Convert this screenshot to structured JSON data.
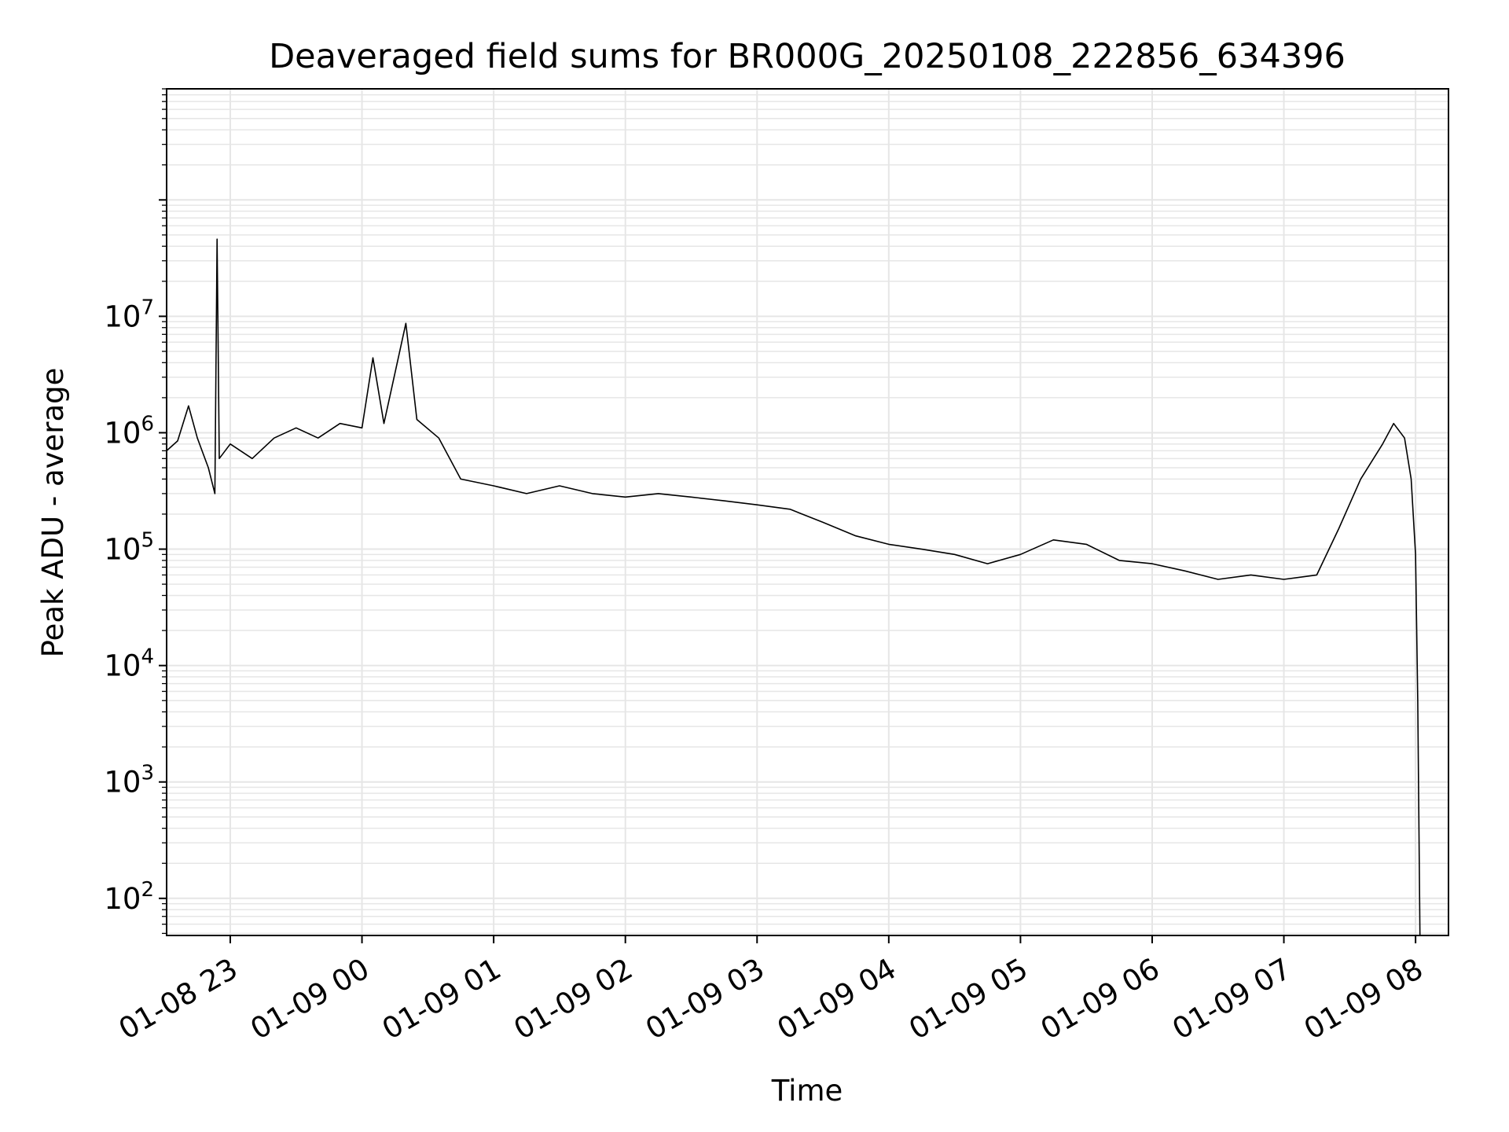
{
  "chart_data": {
    "type": "line",
    "title": "Deaveraged field sums for BR000G_20250108_222856_634396",
    "xlabel": "Time",
    "ylabel": "Peak ADU - average",
    "yscale": "log",
    "ylim": [
      48,
      900000000
    ],
    "xlim": [
      "01-08 22:31",
      "01-09 08:15"
    ],
    "grid": true,
    "x_ticks": [
      "01-08 23",
      "01-09 00",
      "01-09 01",
      "01-09 02",
      "01-09 03",
      "01-09 04",
      "01-09 05",
      "01-09 06",
      "01-09 07",
      "01-09 08"
    ],
    "y_ticks": [
      {
        "base": "10",
        "exp": "2",
        "value": 100
      },
      {
        "base": "10",
        "exp": "3",
        "value": 1000
      },
      {
        "base": "10",
        "exp": "4",
        "value": 10000
      },
      {
        "base": "10",
        "exp": "5",
        "value": 100000
      },
      {
        "base": "10",
        "exp": "6",
        "value": 1000000
      },
      {
        "base": "10",
        "exp": "7",
        "value": 10000000
      }
    ],
    "line_color": "#000000",
    "grid_color": "#e6e6e6",
    "series": [
      {
        "points": [
          [
            "01-08 22:31",
            700000
          ],
          [
            "01-08 22:36",
            850000
          ],
          [
            "01-08 22:41",
            1700000
          ],
          [
            "01-08 22:45",
            900000
          ],
          [
            "01-08 22:50",
            500000
          ],
          [
            "01-08 22:53",
            300000
          ],
          [
            "01-08 22:54",
            46000000
          ],
          [
            "01-08 22:55",
            600000
          ],
          [
            "01-08 23:00",
            800000
          ],
          [
            "01-08 23:10",
            600000
          ],
          [
            "01-08 23:20",
            900000
          ],
          [
            "01-08 23:30",
            1100000
          ],
          [
            "01-08 23:40",
            900000
          ],
          [
            "01-08 23:50",
            1200000
          ],
          [
            "01-09 00:00",
            1100000
          ],
          [
            "01-09 00:05",
            4400000
          ],
          [
            "01-09 00:10",
            1200000
          ],
          [
            "01-09 00:20",
            8700000
          ],
          [
            "01-09 00:25",
            1300000
          ],
          [
            "01-09 00:35",
            900000
          ],
          [
            "01-09 00:45",
            400000
          ],
          [
            "01-09 01:00",
            350000
          ],
          [
            "01-09 01:15",
            300000
          ],
          [
            "01-09 01:30",
            350000
          ],
          [
            "01-09 01:45",
            300000
          ],
          [
            "01-09 02:00",
            280000
          ],
          [
            "01-09 02:15",
            300000
          ],
          [
            "01-09 02:30",
            280000
          ],
          [
            "01-09 02:45",
            260000
          ],
          [
            "01-09 03:00",
            240000
          ],
          [
            "01-09 03:15",
            220000
          ],
          [
            "01-09 03:30",
            170000
          ],
          [
            "01-09 03:45",
            130000
          ],
          [
            "01-09 04:00",
            110000
          ],
          [
            "01-09 04:15",
            100000
          ],
          [
            "01-09 04:30",
            90000
          ],
          [
            "01-09 04:45",
            75000
          ],
          [
            "01-09 05:00",
            90000
          ],
          [
            "01-09 05:15",
            120000
          ],
          [
            "01-09 05:30",
            110000
          ],
          [
            "01-09 05:45",
            80000
          ],
          [
            "01-09 06:00",
            75000
          ],
          [
            "01-09 06:15",
            65000
          ],
          [
            "01-09 06:30",
            55000
          ],
          [
            "01-09 06:45",
            60000
          ],
          [
            "01-09 07:00",
            55000
          ],
          [
            "01-09 07:15",
            60000
          ],
          [
            "01-09 07:25",
            150000
          ],
          [
            "01-09 07:35",
            400000
          ],
          [
            "01-09 07:45",
            800000
          ],
          [
            "01-09 07:50",
            1200000
          ],
          [
            "01-09 07:55",
            900000
          ],
          [
            "01-09 07:58",
            400000
          ],
          [
            "01-09 08:00",
            90000
          ],
          [
            "01-09 08:01",
            5000
          ],
          [
            "01-09 08:02",
            48
          ]
        ]
      }
    ]
  }
}
